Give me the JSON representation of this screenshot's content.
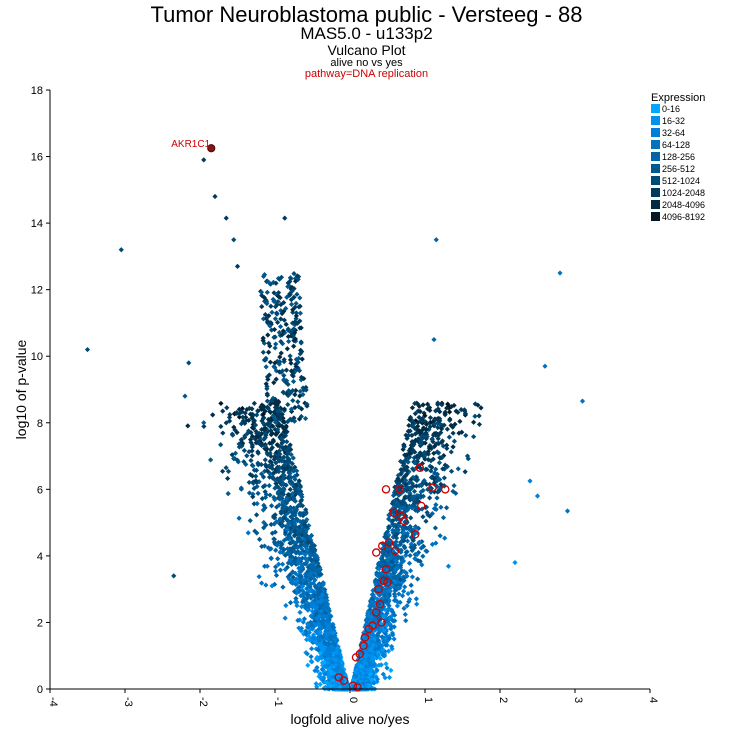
{
  "header": {
    "title": "Tumor Neuroblastoma public - Versteeg - 88",
    "subtitle": "MAS5.0 - u133p2",
    "plot_type": "Vulcano Plot",
    "comparison": "alive no vs yes",
    "pathway": "pathway=DNA replication"
  },
  "colors": {
    "highlight": "#cc0000",
    "expression_bins": [
      "#00a6ff",
      "#0092f0",
      "#0080d8",
      "#0072c0",
      "#0064a6",
      "#00588e",
      "#004a76",
      "#003a5c",
      "#002c44",
      "#021624"
    ]
  },
  "chart_data": {
    "type": "scatter",
    "title": "Vulcano Plot",
    "xlabel": "logfold alive no/yes",
    "ylabel": "log10 of p-value",
    "xlim": [
      -4,
      4
    ],
    "ylim": [
      0,
      18
    ],
    "x_ticks": [
      -4,
      -3,
      -2,
      -1,
      0,
      1,
      2,
      3,
      4
    ],
    "y_ticks": [
      0,
      2,
      4,
      6,
      8,
      10,
      12,
      14,
      16,
      18
    ],
    "legend": {
      "title": "Expression",
      "placement": "top-right",
      "entries": [
        "0-16",
        "16-32",
        "32-64",
        "64-128",
        "128-256",
        "256-512",
        "512-1024",
        "1024-2048",
        "2048-4096",
        "4096-8192"
      ]
    },
    "annotation": {
      "label": "AKR1C1",
      "x": -1.85,
      "y": 16.25
    },
    "outliers": [
      {
        "x": -3.5,
        "y": 10.2,
        "bin": 6
      },
      {
        "x": -3.05,
        "y": 13.2,
        "bin": 6
      },
      {
        "x": -1.95,
        "y": 15.9,
        "bin": 7
      },
      {
        "x": -1.8,
        "y": 14.8,
        "bin": 7
      },
      {
        "x": -1.65,
        "y": 14.15,
        "bin": 7
      },
      {
        "x": -1.55,
        "y": 13.5,
        "bin": 6
      },
      {
        "x": -1.5,
        "y": 12.7,
        "bin": 7
      },
      {
        "x": -0.87,
        "y": 14.15,
        "bin": 7
      },
      {
        "x": -2.15,
        "y": 9.8,
        "bin": 6
      },
      {
        "x": -2.2,
        "y": 8.8,
        "bin": 5
      },
      {
        "x": -1.95,
        "y": 8.0,
        "bin": 5
      },
      {
        "x": -2.35,
        "y": 3.4,
        "bin": 6
      },
      {
        "x": 1.15,
        "y": 13.5,
        "bin": 4
      },
      {
        "x": 2.8,
        "y": 12.5,
        "bin": 3
      },
      {
        "x": 3.1,
        "y": 8.65,
        "bin": 3
      },
      {
        "x": 2.6,
        "y": 9.7,
        "bin": 3
      },
      {
        "x": 2.9,
        "y": 5.35,
        "bin": 3
      },
      {
        "x": 2.5,
        "y": 5.8,
        "bin": 2
      },
      {
        "x": 2.4,
        "y": 6.25,
        "bin": 2
      },
      {
        "x": 2.2,
        "y": 3.8,
        "bin": 1
      },
      {
        "x": 1.12,
        "y": 10.5,
        "bin": 4
      }
    ],
    "highlighted_points": [
      {
        "x": 0.93,
        "y": 6.65
      },
      {
        "x": 1.1,
        "y": 6.05
      },
      {
        "x": 1.27,
        "y": 6.0
      },
      {
        "x": 0.66,
        "y": 6.0
      },
      {
        "x": 0.48,
        "y": 6.0
      },
      {
        "x": 0.95,
        "y": 5.5
      },
      {
        "x": 0.58,
        "y": 5.3
      },
      {
        "x": 0.72,
        "y": 5.05
      },
      {
        "x": 0.68,
        "y": 5.2
      },
      {
        "x": 0.87,
        "y": 4.65
      },
      {
        "x": 0.52,
        "y": 4.4
      },
      {
        "x": 0.6,
        "y": 4.15
      },
      {
        "x": 0.43,
        "y": 4.3
      },
      {
        "x": 0.35,
        "y": 4.1
      },
      {
        "x": 0.48,
        "y": 3.6
      },
      {
        "x": 0.5,
        "y": 3.2
      },
      {
        "x": 0.45,
        "y": 3.25
      },
      {
        "x": 0.38,
        "y": 3.0
      },
      {
        "x": 0.4,
        "y": 2.55
      },
      {
        "x": 0.35,
        "y": 2.3
      },
      {
        "x": 0.42,
        "y": 2.0
      },
      {
        "x": 0.3,
        "y": 1.9
      },
      {
        "x": 0.25,
        "y": 1.8
      },
      {
        "x": 0.2,
        "y": 1.55
      },
      {
        "x": 0.18,
        "y": 1.3
      },
      {
        "x": 0.13,
        "y": 1.05
      },
      {
        "x": 0.08,
        "y": 0.95
      },
      {
        "x": -0.15,
        "y": 0.35
      },
      {
        "x": -0.08,
        "y": 0.25
      },
      {
        "x": 0.04,
        "y": 0.1
      },
      {
        "x": 0.1,
        "y": 0.05
      }
    ]
  }
}
